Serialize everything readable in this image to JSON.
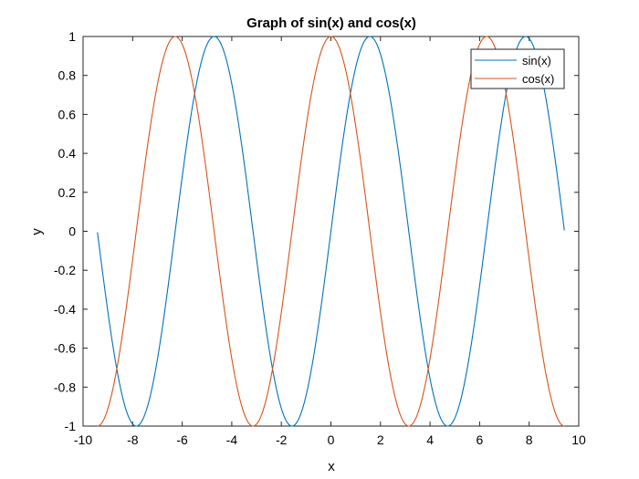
{
  "chart_data": {
    "type": "line",
    "title": "Graph of sin(x) and cos(x)",
    "xlabel": "x",
    "ylabel": "y",
    "xlim": [
      -10,
      10
    ],
    "ylim": [
      -1,
      1
    ],
    "x_range": [
      -9.42,
      9.42
    ],
    "xticks": [
      -10,
      -8,
      -6,
      -4,
      -2,
      0,
      2,
      4,
      6,
      8,
      10
    ],
    "yticks": [
      -1,
      -0.8,
      -0.6,
      -0.4,
      -0.2,
      0,
      0.2,
      0.4,
      0.6,
      0.8,
      1
    ],
    "xtick_labels": [
      "-10",
      "-8",
      "-6",
      "-4",
      "-2",
      "0",
      "2",
      "4",
      "6",
      "8",
      "10"
    ],
    "ytick_labels": [
      "-1",
      "-0.8",
      "-0.6",
      "-0.4",
      "-0.2",
      "0",
      "0.2",
      "0.4",
      "0.6",
      "0.8",
      "1"
    ],
    "grid": false,
    "legend_placement": "top-right",
    "series": [
      {
        "name": "sin(x)",
        "function": "sin",
        "color": "#0072BD"
      },
      {
        "name": "cos(x)",
        "function": "cos",
        "color": "#D95319"
      }
    ]
  }
}
